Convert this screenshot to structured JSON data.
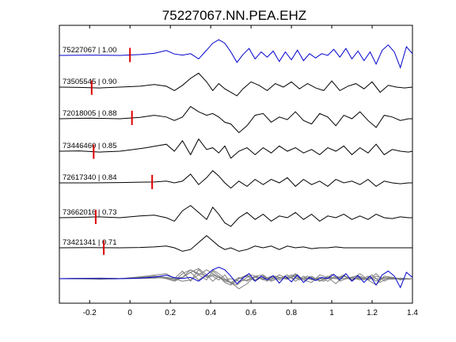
{
  "chart_data": {
    "type": "line",
    "title": "75227067.NN.PEA.EHZ",
    "xlabel": "",
    "ylabel": "",
    "xlim": [
      -0.35,
      1.4
    ],
    "x_ticks": [
      -0.2,
      0,
      0.2,
      0.4,
      0.6,
      0.8,
      1,
      1.2,
      1.4
    ],
    "x_tick_labels": [
      "-0.2",
      "0",
      "0.2",
      "0.4",
      "0.6",
      "0.8",
      "1",
      "1.2",
      "1.4"
    ],
    "grid": false,
    "colors": {
      "reference": "#0000cc",
      "trace": "#000000",
      "pick": "#dd0000",
      "stack": "#808080"
    },
    "series": [
      {
        "label": "75227067 | 1.00",
        "pick": 0.0,
        "color": "blue",
        "x": [
          -0.35,
          -0.2,
          -0.05,
          0.05,
          0.12,
          0.18,
          0.22,
          0.26,
          0.3,
          0.34,
          0.38,
          0.41,
          0.44,
          0.47,
          0.5,
          0.53,
          0.56,
          0.59,
          0.62,
          0.65,
          0.68,
          0.71,
          0.74,
          0.77,
          0.8,
          0.83,
          0.86,
          0.89,
          0.92,
          0.95,
          0.98,
          1.01,
          1.04,
          1.07,
          1.1,
          1.13,
          1.16,
          1.19,
          1.22,
          1.25,
          1.28,
          1.31,
          1.34,
          1.37,
          1.4
        ],
        "y": [
          0,
          0.02,
          0,
          0.05,
          0.12,
          0.28,
          0.08,
          0.02,
          0.1,
          -0.2,
          0.3,
          0.7,
          0.9,
          0.7,
          0.2,
          -0.4,
          0.05,
          0.4,
          -0.2,
          0.2,
          -0.1,
          0.25,
          -0.35,
          0.2,
          -0.25,
          0.3,
          -0.3,
          0.1,
          -0.15,
          0.1,
          0.0,
          0.35,
          -0.1,
          0.4,
          -0.2,
          0.25,
          -0.3,
          0.2,
          -0.5,
          0.3,
          0.6,
          0.2,
          -0.7,
          0.5,
          0.1
        ]
      },
      {
        "label": "73505545 | 0.90",
        "pick": -0.19,
        "color": "black",
        "x": [
          -0.35,
          -0.25,
          -0.15,
          -0.05,
          0.05,
          0.12,
          0.18,
          0.22,
          0.26,
          0.3,
          0.34,
          0.38,
          0.41,
          0.44,
          0.47,
          0.5,
          0.53,
          0.56,
          0.6,
          0.64,
          0.68,
          0.72,
          0.76,
          0.8,
          0.84,
          0.88,
          0.92,
          0.96,
          1.0,
          1.04,
          1.08,
          1.12,
          1.16,
          1.2,
          1.24,
          1.28,
          1.32,
          1.36,
          1.4
        ],
        "y": [
          0,
          -0.02,
          -0.05,
          0.0,
          0.05,
          0.15,
          0.05,
          -0.2,
          0.1,
          0.5,
          0.8,
          0.3,
          -0.2,
          0.2,
          -0.1,
          -0.3,
          -0.5,
          -0.1,
          0.3,
          0.1,
          -0.2,
          0.2,
          0.0,
          0.3,
          -0.1,
          0.2,
          -0.05,
          -0.2,
          0.35,
          -0.2,
          0.05,
          0.2,
          -0.1,
          0.3,
          -0.3,
          0.1,
          0.0,
          -0.05,
          0.0
        ]
      },
      {
        "label": "72018005 | 0.88",
        "pick": 0.01,
        "color": "black",
        "x": [
          -0.35,
          -0.2,
          -0.05,
          0.05,
          0.12,
          0.18,
          0.22,
          0.26,
          0.3,
          0.34,
          0.38,
          0.41,
          0.44,
          0.47,
          0.5,
          0.54,
          0.58,
          0.62,
          0.66,
          0.7,
          0.74,
          0.78,
          0.82,
          0.86,
          0.9,
          0.94,
          0.98,
          1.02,
          1.06,
          1.1,
          1.14,
          1.18,
          1.22,
          1.26,
          1.3,
          1.34,
          1.38,
          1.4
        ],
        "y": [
          0,
          0.03,
          0.0,
          0.08,
          0.2,
          0.1,
          -0.1,
          0.1,
          0.7,
          0.4,
          0.2,
          0.3,
          0.1,
          -0.2,
          -0.3,
          -0.8,
          -0.4,
          0.2,
          0.3,
          -0.2,
          0.1,
          -0.05,
          0.4,
          -0.1,
          -0.3,
          0.3,
          0.1,
          -0.4,
          0.2,
          0.0,
          0.4,
          -0.1,
          -0.5,
          0.2,
          0.1,
          -0.1,
          0.0,
          0.0
        ]
      },
      {
        "label": "73446460 | 0.85",
        "pick": -0.18,
        "color": "black",
        "x": [
          -0.35,
          -0.25,
          -0.15,
          -0.05,
          0.02,
          0.08,
          0.13,
          0.18,
          0.22,
          0.26,
          0.3,
          0.34,
          0.38,
          0.41,
          0.44,
          0.47,
          0.5,
          0.54,
          0.58,
          0.62,
          0.66,
          0.7,
          0.74,
          0.78,
          0.82,
          0.86,
          0.9,
          0.94,
          0.98,
          1.02,
          1.06,
          1.1,
          1.14,
          1.18,
          1.22,
          1.26,
          1.3,
          1.34,
          1.38,
          1.4
        ],
        "y": [
          0,
          0.02,
          -0.05,
          0.0,
          0.1,
          0.2,
          0.3,
          0.4,
          0.0,
          0.6,
          -0.2,
          0.7,
          0.1,
          0.2,
          -0.1,
          0.3,
          -0.4,
          0.0,
          0.2,
          -0.2,
          0.2,
          -0.1,
          0.3,
          0.0,
          0.2,
          -0.1,
          0.1,
          -0.2,
          0.2,
          0.0,
          0.3,
          -0.2,
          0.2,
          -0.1,
          0.4,
          -0.2,
          0.1,
          0.0,
          -0.05,
          0.0
        ]
      },
      {
        "label": "72617340 | 0.84",
        "pick": 0.11,
        "color": "black",
        "x": [
          -0.35,
          -0.2,
          -0.05,
          0.05,
          0.12,
          0.18,
          0.22,
          0.26,
          0.3,
          0.34,
          0.38,
          0.41,
          0.44,
          0.47,
          0.5,
          0.54,
          0.58,
          0.62,
          0.66,
          0.7,
          0.74,
          0.78,
          0.82,
          0.86,
          0.9,
          0.94,
          0.98,
          1.02,
          1.06,
          1.1,
          1.14,
          1.18,
          1.22,
          1.26,
          1.3,
          1.34,
          1.38,
          1.4
        ],
        "y": [
          0,
          0.0,
          0.02,
          0.04,
          0.05,
          0.1,
          0.0,
          0.1,
          0.5,
          -0.1,
          0.3,
          0.7,
          0.4,
          0.0,
          -0.3,
          0.1,
          -0.2,
          0.2,
          -0.1,
          0.2,
          0.0,
          0.3,
          -0.2,
          0.2,
          -0.1,
          0.1,
          -0.2,
          0.2,
          0.0,
          0.1,
          -0.1,
          0.2,
          -0.2,
          0.1,
          0.0,
          -0.05,
          0.0,
          0.0
        ]
      },
      {
        "label": "73662016 | 0.73",
        "pick": -0.17,
        "color": "black",
        "x": [
          -0.35,
          -0.25,
          -0.15,
          -0.05,
          0.05,
          0.12,
          0.18,
          0.22,
          0.26,
          0.3,
          0.34,
          0.38,
          0.41,
          0.44,
          0.47,
          0.5,
          0.54,
          0.58,
          0.62,
          0.66,
          0.7,
          0.74,
          0.78,
          0.82,
          0.86,
          0.9,
          0.94,
          0.98,
          1.02,
          1.06,
          1.1,
          1.14,
          1.18,
          1.22,
          1.26,
          1.3,
          1.34,
          1.38,
          1.4
        ],
        "y": [
          0,
          0.02,
          0.05,
          0.0,
          0.1,
          0.15,
          0.0,
          -0.2,
          0.4,
          0.7,
          0.3,
          -0.1,
          0.6,
          0.2,
          -0.3,
          -0.5,
          0.0,
          0.3,
          -0.1,
          0.2,
          -0.2,
          0.1,
          0.0,
          0.3,
          -0.1,
          0.2,
          -0.2,
          0.1,
          0.0,
          0.2,
          -0.1,
          0.1,
          -0.1,
          0.2,
          0.0,
          -0.05,
          0.05,
          0.0,
          0.0
        ]
      },
      {
        "label": "73421341 | 0.71",
        "pick": -0.13,
        "color": "black",
        "x": [
          -0.35,
          -0.2,
          -0.05,
          0.05,
          0.12,
          0.18,
          0.22,
          0.26,
          0.3,
          0.34,
          0.38,
          0.41,
          0.44,
          0.47,
          0.5,
          0.54,
          0.58,
          0.62,
          0.66,
          0.7,
          0.74,
          0.78,
          0.82,
          0.86,
          0.9,
          0.94,
          0.98,
          1.02,
          1.06,
          1.1,
          1.14,
          1.18,
          1.22,
          1.26,
          1.3,
          1.34,
          1.38,
          1.4
        ],
        "y": [
          0,
          0.01,
          0.0,
          0.02,
          0.05,
          0.1,
          0.0,
          -0.2,
          -0.1,
          0.3,
          0.7,
          0.4,
          0.1,
          -0.1,
          0.0,
          -0.2,
          -0.1,
          0.1,
          0.0,
          0.1,
          -0.1,
          0.1,
          0.0,
          0.05,
          -0.05,
          0.0,
          0.0,
          0.05,
          0.0,
          0.0,
          0.0,
          0.0,
          0.0,
          0.0,
          0.0,
          0.0,
          0.0,
          0.0
        ]
      }
    ]
  }
}
